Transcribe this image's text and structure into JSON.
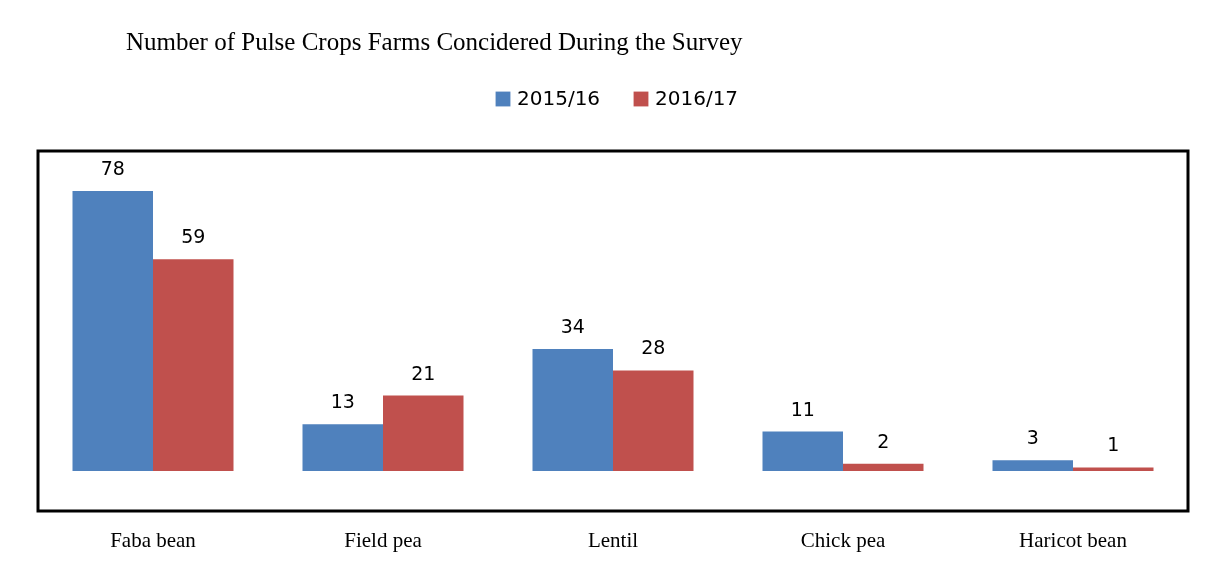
{
  "chart_data": {
    "type": "bar",
    "title": "Number of Pulse Crops Farms Concidered During the Survey",
    "categories": [
      "Faba bean",
      "Field pea",
      "Lentil",
      "Chick pea",
      "Haricot bean"
    ],
    "series": [
      {
        "name": "2015/16",
        "color": "#4f81bd",
        "values": [
          78,
          13,
          34,
          11,
          3
        ]
      },
      {
        "name": "2016/17",
        "color": "#c0504d",
        "values": [
          59,
          21,
          28,
          2,
          1
        ]
      }
    ],
    "data_labels": true,
    "legend": "top"
  }
}
